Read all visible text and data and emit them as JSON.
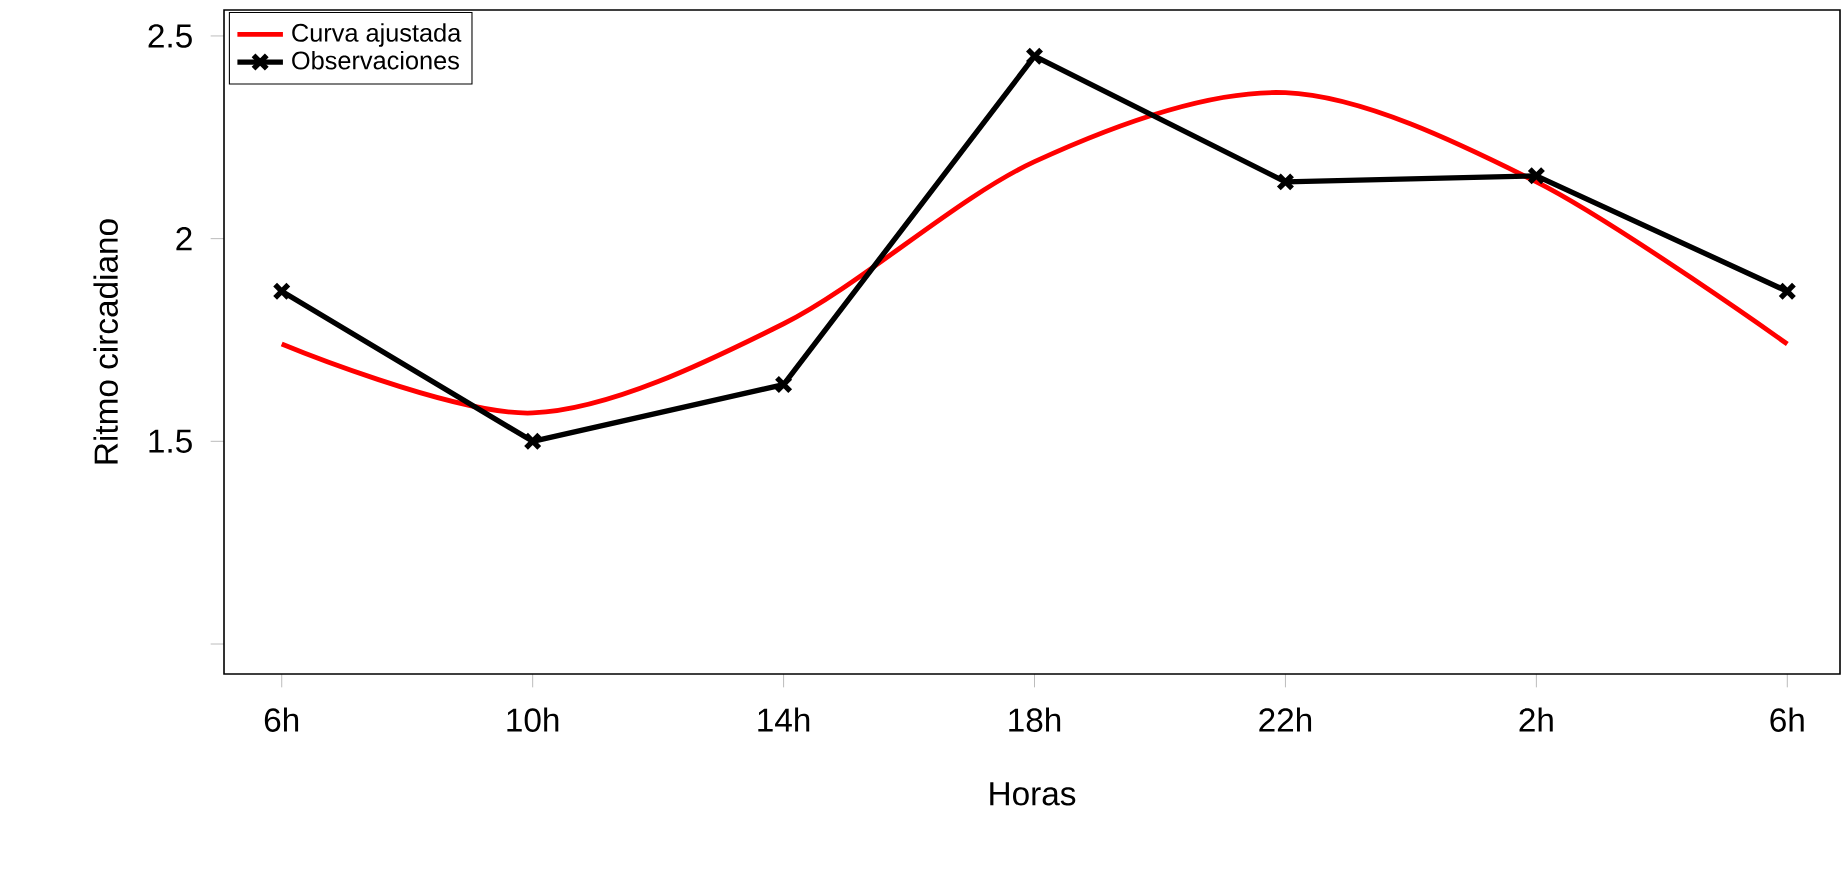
{
  "chart_data": {
    "type": "line",
    "xlabel": "Horas",
    "ylabel": "Ritmo circadiano",
    "categories": [
      "6h",
      "10h",
      "14h",
      "18h",
      "22h",
      "2h",
      "6h"
    ],
    "ylim": [
      0.926,
      2.564
    ],
    "yticks": [
      {
        "value": 1,
        "label": null
      },
      1.5,
      2,
      2.5
    ],
    "legend": "top left",
    "series": [
      {
        "name": "Curva ajustada",
        "color": "#ff0000",
        "marker": "none",
        "line_style": "solid",
        "values": [
          1.74,
          1.57,
          1.79,
          2.19,
          2.36,
          2.14,
          1.74
        ]
      },
      {
        "name": "Observaciones",
        "color": "#000000",
        "marker": "cross",
        "line_style": "solid",
        "values": [
          1.87,
          1.5,
          1.64,
          2.45,
          2.14,
          2.155,
          1.87
        ]
      }
    ]
  }
}
